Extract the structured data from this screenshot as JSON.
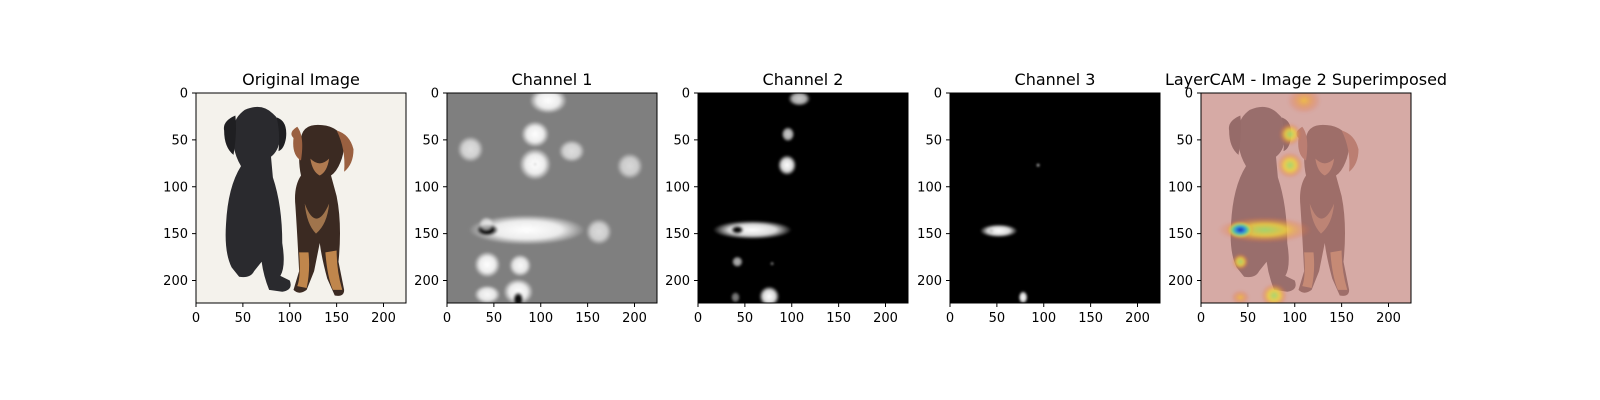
{
  "chart_data": [
    {
      "type": "image",
      "title": "Original Image",
      "content": "photo-two-puppies",
      "colormap": "rgb",
      "xlim": [
        0,
        224
      ],
      "ylim": [
        224,
        0
      ],
      "xticks": [
        0,
        50,
        100,
        150,
        200
      ],
      "yticks": [
        0,
        50,
        100,
        150,
        200
      ]
    },
    {
      "type": "heatmap",
      "title": "Channel 1",
      "colormap": "gray",
      "background": "#7f7f7f",
      "xlim": [
        0,
        224
      ],
      "ylim": [
        224,
        0
      ],
      "xticks": [
        0,
        50,
        100,
        150,
        200
      ],
      "yticks": [
        0,
        50,
        100,
        150,
        200
      ]
    },
    {
      "type": "heatmap",
      "title": "Channel 2",
      "colormap": "gray",
      "background": "#000000",
      "xlim": [
        0,
        224
      ],
      "ylim": [
        224,
        0
      ],
      "xticks": [
        0,
        50,
        100,
        150,
        200
      ],
      "yticks": [
        0,
        50,
        100,
        150,
        200
      ]
    },
    {
      "type": "heatmap",
      "title": "Channel 3",
      "colormap": "gray",
      "background": "#000000",
      "xlim": [
        0,
        224
      ],
      "ylim": [
        224,
        0
      ],
      "xticks": [
        0,
        50,
        100,
        150,
        200
      ],
      "yticks": [
        0,
        50,
        100,
        150,
        200
      ]
    },
    {
      "type": "heatmap",
      "title": "LayerCAM - Image 2 Superimposed",
      "colormap": "jet",
      "background": "#c98c88",
      "xlim": [
        0,
        224
      ],
      "ylim": [
        224,
        0
      ],
      "xticks": [
        0,
        50,
        100,
        150,
        200
      ],
      "yticks": [
        0,
        50,
        100,
        150,
        200
      ]
    }
  ],
  "blobs": {
    "channel1": [
      {
        "x": 108,
        "y": 8,
        "rx": 20,
        "ry": 14,
        "v": 1.0
      },
      {
        "x": 94,
        "y": 44,
        "rx": 15,
        "ry": 14,
        "v": 1.0
      },
      {
        "x": 94,
        "y": 76,
        "rx": 17,
        "ry": 17,
        "v": 1.0
      },
      {
        "x": 94,
        "y": 76,
        "rx": 2,
        "ry": 2,
        "v": 0.4
      },
      {
        "x": 25,
        "y": 60,
        "rx": 14,
        "ry": 14,
        "v": 0.75
      },
      {
        "x": 133,
        "y": 62,
        "rx": 14,
        "ry": 12,
        "v": 0.75
      },
      {
        "x": 195,
        "y": 78,
        "rx": 14,
        "ry": 14,
        "v": 0.7
      },
      {
        "x": 162,
        "y": 148,
        "rx": 14,
        "ry": 14,
        "v": 0.72
      },
      {
        "x": 85,
        "y": 146,
        "rx": 62,
        "ry": 16,
        "v": 1.0
      },
      {
        "x": 43,
        "y": 146,
        "rx": 12,
        "ry": 7,
        "v": 0.0
      },
      {
        "x": 43,
        "y": 183,
        "rx": 14,
        "ry": 14,
        "v": 1.0
      },
      {
        "x": 78,
        "y": 184,
        "rx": 12,
        "ry": 12,
        "v": 0.95
      },
      {
        "x": 76,
        "y": 212,
        "rx": 16,
        "ry": 14,
        "v": 1.0
      },
      {
        "x": 76,
        "y": 220,
        "rx": 6,
        "ry": 8,
        "v": 0.0
      },
      {
        "x": 43,
        "y": 215,
        "rx": 14,
        "ry": 10,
        "v": 0.95
      },
      {
        "x": 42,
        "y": 140,
        "rx": 8,
        "ry": 8,
        "v": 0.7
      }
    ],
    "channel2": [
      {
        "x": 108,
        "y": 6,
        "rx": 12,
        "ry": 8,
        "v": 0.8
      },
      {
        "x": 96,
        "y": 44,
        "rx": 7,
        "ry": 8,
        "v": 0.8
      },
      {
        "x": 95,
        "y": 77,
        "rx": 10,
        "ry": 11,
        "v": 1.0
      },
      {
        "x": 58,
        "y": 146,
        "rx": 42,
        "ry": 10,
        "v": 1.0
      },
      {
        "x": 42,
        "y": 146,
        "rx": 7,
        "ry": 5,
        "v": 0.0
      },
      {
        "x": 42,
        "y": 180,
        "rx": 6,
        "ry": 6,
        "v": 0.7
      },
      {
        "x": 76,
        "y": 217,
        "rx": 11,
        "ry": 11,
        "v": 1.0
      },
      {
        "x": 40,
        "y": 218,
        "rx": 5,
        "ry": 6,
        "v": 0.5
      },
      {
        "x": 79,
        "y": 182,
        "rx": 2,
        "ry": 2,
        "v": 0.5
      }
    ],
    "channel3": [
      {
        "x": 94,
        "y": 77,
        "rx": 2,
        "ry": 2,
        "v": 0.7
      },
      {
        "x": 52,
        "y": 147,
        "rx": 20,
        "ry": 7,
        "v": 1.0
      },
      {
        "x": 44,
        "y": 147,
        "rx": 3,
        "ry": 3,
        "v": 0.2
      },
      {
        "x": 78,
        "y": 218,
        "rx": 5,
        "ry": 7,
        "v": 1.0
      }
    ],
    "overlay": [
      {
        "x": 110,
        "y": 8,
        "rx": 18,
        "ry": 14,
        "v": 0.55
      },
      {
        "x": 95,
        "y": 44,
        "rx": 12,
        "ry": 12,
        "v": 0.6
      },
      {
        "x": 95,
        "y": 77,
        "rx": 14,
        "ry": 14,
        "v": 0.65
      },
      {
        "x": 68,
        "y": 146,
        "rx": 50,
        "ry": 14,
        "v": 0.7
      },
      {
        "x": 42,
        "y": 146,
        "rx": 14,
        "ry": 9,
        "v": 1.0
      },
      {
        "x": 42,
        "y": 180,
        "rx": 9,
        "ry": 9,
        "v": 0.6
      },
      {
        "x": 78,
        "y": 216,
        "rx": 14,
        "ry": 13,
        "v": 0.7
      },
      {
        "x": 42,
        "y": 218,
        "rx": 10,
        "ry": 8,
        "v": 0.45
      }
    ]
  }
}
